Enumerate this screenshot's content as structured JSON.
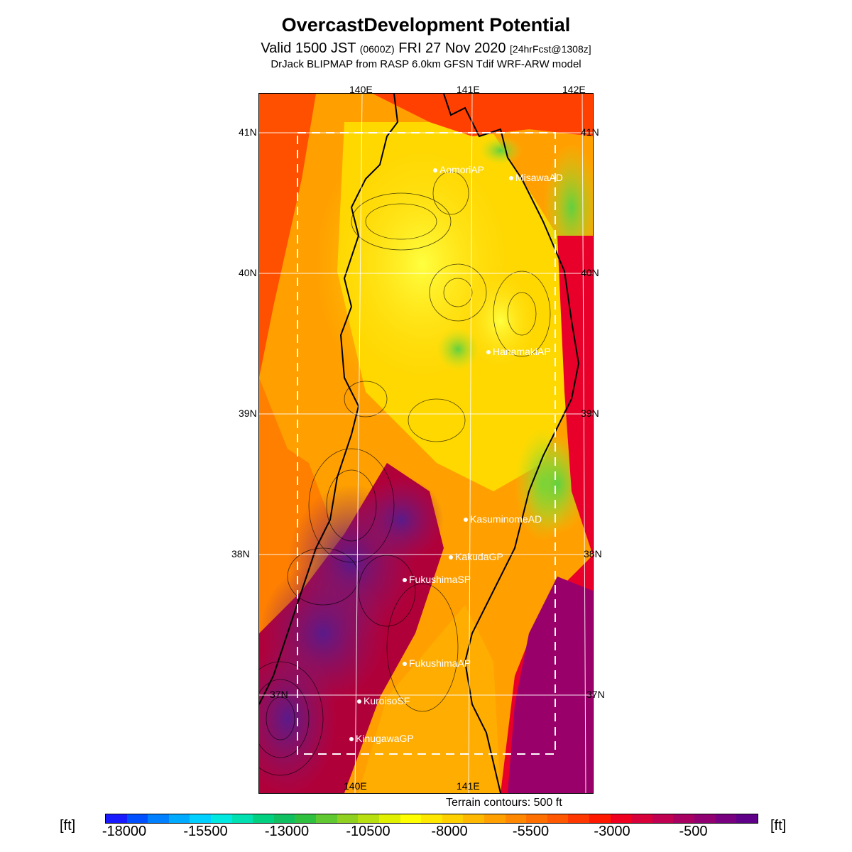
{
  "header": {
    "title": "OvercastDevelopment Potential",
    "valid_prefix": "Valid 1500 JST",
    "zulu": "(0600Z)",
    "valid_date": "FRI 27 Nov 2020",
    "forecast": "[24hrFcst@1308z]",
    "subtitle": "DrJack BLIPMAP from RASP 6.0km GFSN Tdif WRF-ARW model"
  },
  "map": {
    "lon_labels_top": [
      "140E",
      "141E",
      "142E"
    ],
    "lon_labels_bottom": [
      "140E",
      "141E"
    ],
    "lat_labels": [
      "41N",
      "40N",
      "39N",
      "38N",
      "37N"
    ],
    "stations": [
      {
        "name": "AomoriAP"
      },
      {
        "name": "MisawaAD"
      },
      {
        "name": "HanamakiAP"
      },
      {
        "name": "KasuminomeAD"
      },
      {
        "name": "KakudaGP"
      },
      {
        "name": "FukushimaSP"
      },
      {
        "name": "FukushimaAP"
      },
      {
        "name": "KuroisoSF"
      },
      {
        "name": "KinugawaGP"
      }
    ],
    "terrain_note": "Terrain contours: 500 ft"
  },
  "colorbar": {
    "unit_left": "[ft]",
    "unit_right": "[ft]",
    "ticks": [
      "-18000",
      "-15500",
      "-13000",
      "-10500",
      "-8000",
      "-5500",
      "-3000",
      "-500"
    ],
    "colors": [
      "#1a1aff",
      "#0050ff",
      "#0080ff",
      "#00aaff",
      "#00d0ff",
      "#00e8e0",
      "#00e0b0",
      "#00d080",
      "#10c060",
      "#30c040",
      "#60c830",
      "#90d020",
      "#b8e010",
      "#e0f000",
      "#ffff00",
      "#ffe800",
      "#ffd000",
      "#ffb800",
      "#ffa000",
      "#ff8800",
      "#ff7000",
      "#ff5800",
      "#ff3800",
      "#ff1800",
      "#f00020",
      "#d8003a",
      "#c00050",
      "#a80060",
      "#900070",
      "#780080",
      "#600088"
    ]
  }
}
